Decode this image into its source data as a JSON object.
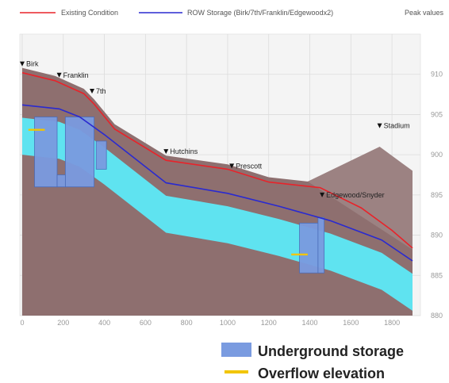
{
  "legend": {
    "existing": "Existing Condition",
    "row": "ROW Storage (Birk/7th/Franklin/Edgewoodx2)",
    "peak": "Peak values",
    "storage": "Underground storage",
    "overflow": "Overflow elevation"
  },
  "colors": {
    "existing": "#e8232a",
    "row": "#2a2ad0",
    "ground": "#8e6f6f",
    "trench": "#5fe3f0",
    "storage": "#7a9be0",
    "overflow": "#f2c500"
  },
  "chart_data": {
    "type": "profile",
    "x_range": [
      0,
      1900
    ],
    "y_range": [
      880,
      915
    ],
    "x_ticks": [
      0,
      200,
      400,
      600,
      800,
      1000,
      1200,
      1400,
      1600,
      1800
    ],
    "y_ticks": [
      880,
      885,
      890,
      895,
      900,
      905,
      910
    ],
    "grid": true,
    "existing_condition": [
      [
        0,
        910.2
      ],
      [
        160,
        909.2
      ],
      [
        300,
        907.6
      ],
      [
        350,
        906.3
      ],
      [
        450,
        903.2
      ],
      [
        700,
        899.3
      ],
      [
        1000,
        898.2
      ],
      [
        1200,
        896.6
      ],
      [
        1450,
        895.9
      ],
      [
        1650,
        893.4
      ],
      [
        1800,
        890.6
      ],
      [
        1900,
        888.4
      ]
    ],
    "row_storage": [
      [
        0,
        906.2
      ],
      [
        180,
        905.7
      ],
      [
        280,
        904.7
      ],
      [
        400,
        902.5
      ],
      [
        700,
        896.5
      ],
      [
        1000,
        895.2
      ],
      [
        1250,
        893.6
      ],
      [
        1500,
        891.8
      ],
      [
        1750,
        889.4
      ],
      [
        1900,
        886.8
      ]
    ],
    "stations": [
      {
        "name": "Birk",
        "x": 0,
        "elev": 911.0
      },
      {
        "name": "Franklin",
        "x": 180,
        "elev": 909.6
      },
      {
        "name": "7th",
        "x": 340,
        "elev": 907.6
      },
      {
        "name": "Hutchins",
        "x": 700,
        "elev": 900.1
      },
      {
        "name": "Prescott",
        "x": 1020,
        "elev": 898.3
      },
      {
        "name": "Edgewood/Snyder",
        "x": 1460,
        "elev": 894.7
      },
      {
        "name": "Stadium",
        "x": 1740,
        "elev": 903.3
      }
    ],
    "storage_units": [
      {
        "x0": 60,
        "x1": 170,
        "bottom": 896.0,
        "top": 904.7
      },
      {
        "x0": 170,
        "x1": 210,
        "bottom": 896.0,
        "top": 897.5
      },
      {
        "x0": 210,
        "x1": 350,
        "bottom": 896.0,
        "top": 904.7
      },
      {
        "x0": 360,
        "x1": 410,
        "bottom": 898.2,
        "top": 901.7
      },
      {
        "x0": 1350,
        "x1": 1440,
        "bottom": 885.3,
        "top": 891.5
      },
      {
        "x0": 1440,
        "x1": 1470,
        "bottom": 885.3,
        "top": 892.2
      }
    ],
    "overflow_marks": [
      {
        "x0": 30,
        "x1": 110,
        "elev": 903.1
      },
      {
        "x0": 1310,
        "x1": 1390,
        "elev": 887.6
      }
    ]
  }
}
